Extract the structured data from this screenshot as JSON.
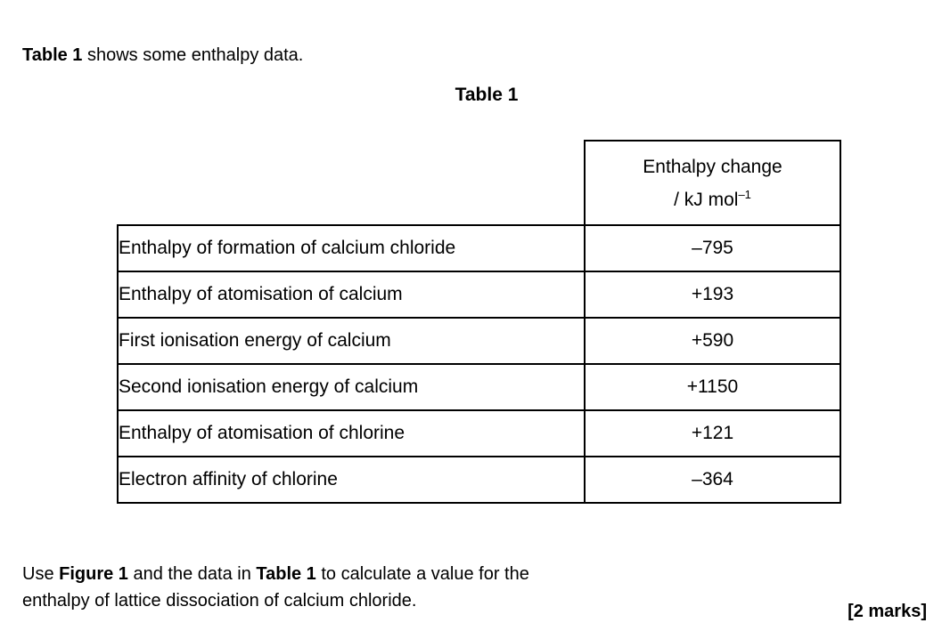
{
  "page": {
    "background_color": "#ffffff",
    "text_color": "#000000",
    "border_color": "#000000"
  },
  "intro": {
    "bold": "Table 1",
    "rest": " shows some enthalpy data."
  },
  "table": {
    "caption": "Table 1",
    "header": {
      "line1": "Enthalpy change",
      "line2_base": "/ kJ mol",
      "line2_sup": "–1"
    },
    "rows": [
      {
        "label": "Enthalpy of formation of calcium chloride",
        "value": "–795"
      },
      {
        "label": "Enthalpy of atomisation of calcium",
        "value": "+193"
      },
      {
        "label": "First ionisation energy of calcium",
        "value": "+590"
      },
      {
        "label": "Second ionisation energy of calcium",
        "value": "+1150"
      },
      {
        "label": "Enthalpy of atomisation of chlorine",
        "value": "+121"
      },
      {
        "label": "Electron affinity of chlorine",
        "value": "–364"
      }
    ]
  },
  "question": {
    "part1": "Use ",
    "bold1": "Figure 1",
    "part2": " and the data in ",
    "bold2": "Table 1",
    "part3": " to calculate a value for the",
    "line2": "enthalpy of lattice dissociation of calcium chloride.",
    "marks": "[2 marks]"
  }
}
